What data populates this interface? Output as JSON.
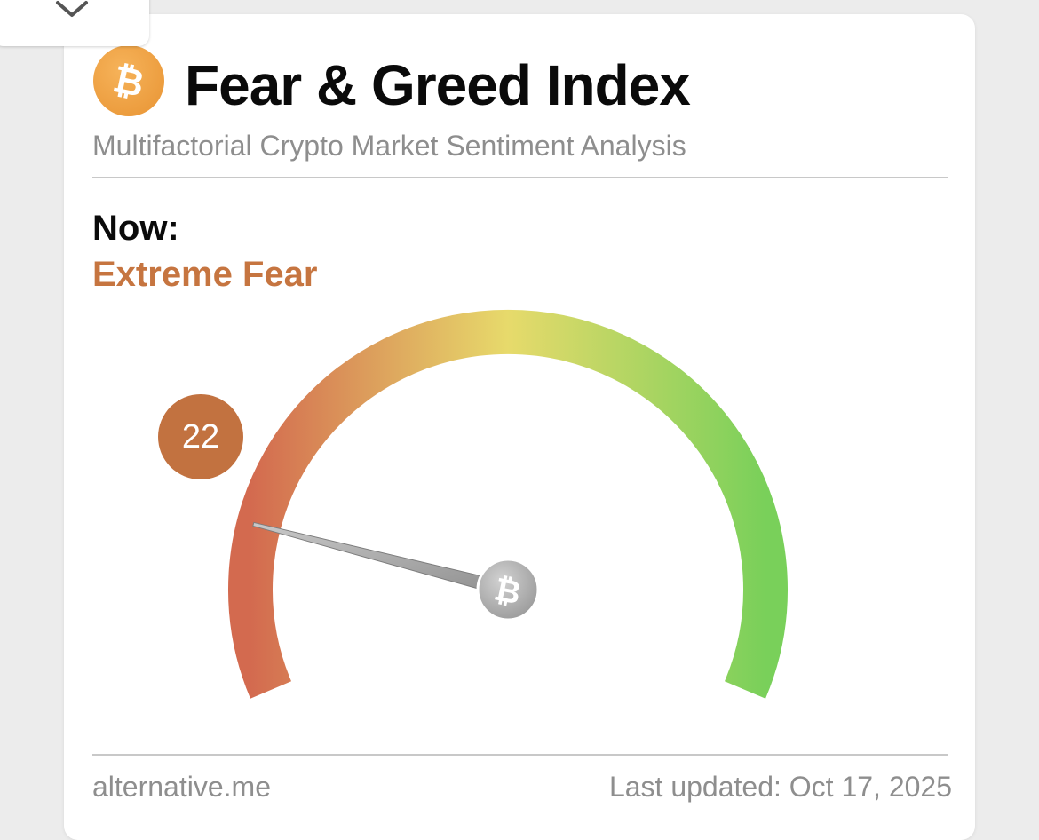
{
  "header": {
    "title": "Fear & Greed Index",
    "subtitle": "Multifactorial Crypto Market Sentiment Analysis",
    "logo_icon": "bitcoin-icon",
    "logo_glyph": "₿"
  },
  "current": {
    "label": "Now:",
    "classification": "Extreme Fear",
    "value": "22",
    "value_number": 22,
    "scale_min": 0,
    "scale_max": 100,
    "classification_color": "#c67540"
  },
  "gauge": {
    "colors": {
      "fear": "#d36a4f",
      "neutral": "#e7da6b",
      "greed": "#79d05a"
    },
    "hub_icon": "bitcoin-icon"
  },
  "footer": {
    "source": "alternative.me",
    "updated": "Last updated: Oct 17, 2025"
  },
  "collapse": {
    "icon": "chevron-down-icon"
  }
}
